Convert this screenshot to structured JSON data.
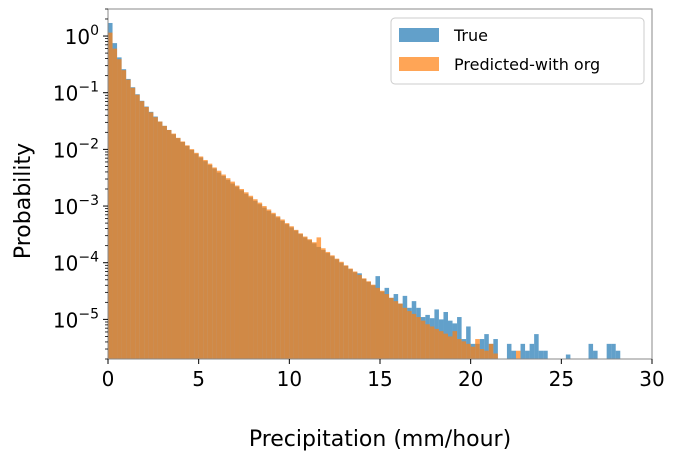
{
  "chart_data": {
    "type": "histogram",
    "title": "",
    "xlabel": "Precipitation (mm/hour)",
    "ylabel": "Probability",
    "xlim": [
      0,
      30
    ],
    "ylim": [
      2e-06,
      3
    ],
    "yscale": "log",
    "bin_width": 0.25,
    "xticks": [
      "0",
      "5",
      "10",
      "15",
      "20",
      "25",
      "30"
    ],
    "yticks": [
      {
        "base": "10",
        "exp": "0",
        "value": 1
      },
      {
        "base": "10",
        "exp": "−1",
        "value": 0.1
      },
      {
        "base": "10",
        "exp": "−2",
        "value": 0.01
      },
      {
        "base": "10",
        "exp": "−3",
        "value": 0.001
      },
      {
        "base": "10",
        "exp": "−4",
        "value": 0.0001
      },
      {
        "base": "10",
        "exp": "−5",
        "value": 1e-05
      }
    ],
    "legend_position": "top-right",
    "series": [
      {
        "name": "True",
        "color": "#1f77b4",
        "opacity": 0.7,
        "points": [
          {
            "x": 0.0,
            "y": 1.7
          },
          {
            "x": 0.25,
            "y": 0.75
          },
          {
            "x": 0.5,
            "y": 0.42
          },
          {
            "x": 0.75,
            "y": 0.26
          },
          {
            "x": 1.0,
            "y": 0.175
          },
          {
            "x": 1.25,
            "y": 0.125
          },
          {
            "x": 1.5,
            "y": 0.094
          },
          {
            "x": 1.75,
            "y": 0.072
          },
          {
            "x": 2.0,
            "y": 0.057
          },
          {
            "x": 2.25,
            "y": 0.046
          },
          {
            "x": 2.5,
            "y": 0.038
          },
          {
            "x": 2.75,
            "y": 0.031
          },
          {
            "x": 3.0,
            "y": 0.026
          },
          {
            "x": 3.25,
            "y": 0.022
          },
          {
            "x": 3.5,
            "y": 0.0185
          },
          {
            "x": 3.75,
            "y": 0.0158
          },
          {
            "x": 4.0,
            "y": 0.0135
          },
          {
            "x": 4.25,
            "y": 0.0115
          },
          {
            "x": 4.5,
            "y": 0.0098
          },
          {
            "x": 4.75,
            "y": 0.0084
          },
          {
            "x": 5.0,
            "y": 0.0072
          },
          {
            "x": 5.25,
            "y": 0.0062
          },
          {
            "x": 5.5,
            "y": 0.0053
          },
          {
            "x": 5.75,
            "y": 0.0046
          },
          {
            "x": 6.0,
            "y": 0.0039
          },
          {
            "x": 6.25,
            "y": 0.0034
          },
          {
            "x": 6.5,
            "y": 0.0029
          },
          {
            "x": 6.75,
            "y": 0.0025
          },
          {
            "x": 7.0,
            "y": 0.0022
          },
          {
            "x": 7.25,
            "y": 0.0019
          },
          {
            "x": 7.5,
            "y": 0.00165
          },
          {
            "x": 7.75,
            "y": 0.00143
          },
          {
            "x": 8.0,
            "y": 0.00124
          },
          {
            "x": 8.25,
            "y": 0.00108
          },
          {
            "x": 8.5,
            "y": 0.00094
          },
          {
            "x": 8.75,
            "y": 0.00082
          },
          {
            "x": 9.0,
            "y": 0.00072
          },
          {
            "x": 9.25,
            "y": 0.00063
          },
          {
            "x": 9.5,
            "y": 0.00055
          },
          {
            "x": 9.75,
            "y": 0.00048
          },
          {
            "x": 10.0,
            "y": 0.00042
          },
          {
            "x": 10.25,
            "y": 0.00037
          },
          {
            "x": 10.5,
            "y": 0.00032
          },
          {
            "x": 10.75,
            "y": 0.00028
          },
          {
            "x": 11.0,
            "y": 0.00025
          },
          {
            "x": 11.25,
            "y": 0.00022
          },
          {
            "x": 11.5,
            "y": 0.00019
          },
          {
            "x": 11.75,
            "y": 0.000168
          },
          {
            "x": 12.0,
            "y": 0.000148
          },
          {
            "x": 12.25,
            "y": 0.00013
          },
          {
            "x": 12.5,
            "y": 0.000115
          },
          {
            "x": 12.75,
            "y": 0.0001
          },
          {
            "x": 13.0,
            "y": 8.8e-05
          },
          {
            "x": 13.25,
            "y": 7.7e-05
          },
          {
            "x": 13.5,
            "y": 6.8e-05
          },
          {
            "x": 13.75,
            "y": 6.5e-05
          },
          {
            "x": 14.0,
            "y": 5.2e-05
          },
          {
            "x": 14.25,
            "y": 4.6e-05
          },
          {
            "x": 14.5,
            "y": 4e-05
          },
          {
            "x": 14.75,
            "y": 5.8e-05
          },
          {
            "x": 15.0,
            "y": 3.1e-05
          },
          {
            "x": 15.25,
            "y": 3.6e-05
          },
          {
            "x": 15.5,
            "y": 2.4e-05
          },
          {
            "x": 15.75,
            "y": 2.8e-05
          },
          {
            "x": 16.0,
            "y": 1.9e-05
          },
          {
            "x": 16.25,
            "y": 2.6e-05
          },
          {
            "x": 16.5,
            "y": 1.6e-05
          },
          {
            "x": 16.75,
            "y": 2.1e-05
          },
          {
            "x": 17.0,
            "y": 1.6e-05
          },
          {
            "x": 17.25,
            "y": 1.1e-05
          },
          {
            "x": 17.5,
            "y": 1.2e-05
          },
          {
            "x": 17.75,
            "y": 1.05e-05
          },
          {
            "x": 18.0,
            "y": 1.5e-05
          },
          {
            "x": 18.25,
            "y": 1e-05
          },
          {
            "x": 18.5,
            "y": 1.35e-05
          },
          {
            "x": 18.75,
            "y": 9.5e-06
          },
          {
            "x": 19.0,
            "y": 8.5e-06
          },
          {
            "x": 19.25,
            "y": 1.1e-05
          },
          {
            "x": 19.5,
            "y": 4.5e-06
          },
          {
            "x": 19.75,
            "y": 7.5e-06
          },
          {
            "x": 20.0,
            "y": 3.7e-06
          },
          {
            "x": 20.25,
            "y": 3.7e-06
          },
          {
            "x": 20.5,
            "y": 4.5e-06
          },
          {
            "x": 20.75,
            "y": 5.5e-06
          },
          {
            "x": 21.0,
            "y": 3.7e-06
          },
          {
            "x": 21.25,
            "y": 4.5e-06
          },
          {
            "x": 22.0,
            "y": 3.7e-06
          },
          {
            "x": 22.25,
            "y": 2.8e-06
          },
          {
            "x": 22.75,
            "y": 3.7e-06
          },
          {
            "x": 23.0,
            "y": 2.8e-06
          },
          {
            "x": 23.25,
            "y": 3.7e-06
          },
          {
            "x": 23.5,
            "y": 5.5e-06
          },
          {
            "x": 23.75,
            "y": 2.8e-06
          },
          {
            "x": 24.0,
            "y": 2.8e-06
          },
          {
            "x": 25.25,
            "y": 2.4e-06
          },
          {
            "x": 26.5,
            "y": 3.7e-06
          },
          {
            "x": 26.75,
            "y": 2.8e-06
          },
          {
            "x": 27.5,
            "y": 3.7e-06
          },
          {
            "x": 27.75,
            "y": 3.7e-06
          },
          {
            "x": 28.0,
            "y": 2.8e-06
          }
        ]
      },
      {
        "name": "Predicted-with org",
        "color": "#ff7f0e",
        "opacity": 0.7,
        "points": [
          {
            "x": 0.0,
            "y": 1.15
          },
          {
            "x": 0.25,
            "y": 0.6
          },
          {
            "x": 0.5,
            "y": 0.39
          },
          {
            "x": 0.75,
            "y": 0.25
          },
          {
            "x": 1.0,
            "y": 0.17
          },
          {
            "x": 1.25,
            "y": 0.122
          },
          {
            "x": 1.5,
            "y": 0.092
          },
          {
            "x": 1.75,
            "y": 0.071
          },
          {
            "x": 2.0,
            "y": 0.056
          },
          {
            "x": 2.25,
            "y": 0.045
          },
          {
            "x": 2.5,
            "y": 0.037
          },
          {
            "x": 2.75,
            "y": 0.031
          },
          {
            "x": 3.0,
            "y": 0.026
          },
          {
            "x": 3.25,
            "y": 0.022
          },
          {
            "x": 3.5,
            "y": 0.019
          },
          {
            "x": 3.75,
            "y": 0.016
          },
          {
            "x": 4.0,
            "y": 0.0138
          },
          {
            "x": 4.25,
            "y": 0.0118
          },
          {
            "x": 4.5,
            "y": 0.0101
          },
          {
            "x": 4.75,
            "y": 0.0087
          },
          {
            "x": 5.0,
            "y": 0.0075
          },
          {
            "x": 5.25,
            "y": 0.0065
          },
          {
            "x": 5.5,
            "y": 0.0056
          },
          {
            "x": 5.75,
            "y": 0.0048
          },
          {
            "x": 6.0,
            "y": 0.0042
          },
          {
            "x": 6.25,
            "y": 0.0036
          },
          {
            "x": 6.5,
            "y": 0.0031
          },
          {
            "x": 6.75,
            "y": 0.0027
          },
          {
            "x": 7.0,
            "y": 0.0023
          },
          {
            "x": 7.25,
            "y": 0.002
          },
          {
            "x": 7.5,
            "y": 0.00175
          },
          {
            "x": 7.75,
            "y": 0.00152
          },
          {
            "x": 8.0,
            "y": 0.00132
          },
          {
            "x": 8.25,
            "y": 0.00115
          },
          {
            "x": 8.5,
            "y": 0.001
          },
          {
            "x": 8.75,
            "y": 0.00087
          },
          {
            "x": 9.0,
            "y": 0.00076
          },
          {
            "x": 9.25,
            "y": 0.00066
          },
          {
            "x": 9.5,
            "y": 0.00058
          },
          {
            "x": 9.75,
            "y": 0.0005
          },
          {
            "x": 10.0,
            "y": 0.00044
          },
          {
            "x": 10.25,
            "y": 0.00038
          },
          {
            "x": 10.5,
            "y": 0.00033
          },
          {
            "x": 10.75,
            "y": 0.00029
          },
          {
            "x": 11.0,
            "y": 0.00026
          },
          {
            "x": 11.25,
            "y": 0.00023
          },
          {
            "x": 11.5,
            "y": 0.00028
          },
          {
            "x": 11.75,
            "y": 0.00018
          },
          {
            "x": 12.0,
            "y": 0.000155
          },
          {
            "x": 12.25,
            "y": 0.000135
          },
          {
            "x": 12.5,
            "y": 0.000118
          },
          {
            "x": 12.75,
            "y": 0.000104
          },
          {
            "x": 13.0,
            "y": 9e-05
          },
          {
            "x": 13.25,
            "y": 7.9e-05
          },
          {
            "x": 13.5,
            "y": 7e-05
          },
          {
            "x": 13.75,
            "y": 6.1e-05
          },
          {
            "x": 14.0,
            "y": 5.3e-05
          },
          {
            "x": 14.25,
            "y": 4.7e-05
          },
          {
            "x": 14.5,
            "y": 4.1e-05
          },
          {
            "x": 14.75,
            "y": 3.6e-05
          },
          {
            "x": 15.0,
            "y": 3.2e-05
          },
          {
            "x": 15.25,
            "y": 2.8e-05
          },
          {
            "x": 15.5,
            "y": 2.4e-05
          },
          {
            "x": 15.75,
            "y": 2.1e-05
          },
          {
            "x": 16.0,
            "y": 1.9e-05
          },
          {
            "x": 16.25,
            "y": 1.6e-05
          },
          {
            "x": 16.5,
            "y": 1.4e-05
          },
          {
            "x": 16.75,
            "y": 1.25e-05
          },
          {
            "x": 17.0,
            "y": 1.1e-05
          },
          {
            "x": 17.25,
            "y": 9.5e-06
          },
          {
            "x": 17.5,
            "y": 8.2e-06
          },
          {
            "x": 17.75,
            "y": 7.5e-06
          },
          {
            "x": 18.0,
            "y": 6.8e-06
          },
          {
            "x": 18.25,
            "y": 6.2e-06
          },
          {
            "x": 18.5,
            "y": 5.6e-06
          },
          {
            "x": 18.75,
            "y": 5e-06
          },
          {
            "x": 19.0,
            "y": 6.2e-06
          },
          {
            "x": 19.25,
            "y": 4.5e-06
          },
          {
            "x": 19.5,
            "y": 4.1e-06
          },
          {
            "x": 19.75,
            "y": 3.7e-06
          },
          {
            "x": 20.0,
            "y": 3.3e-06
          },
          {
            "x": 20.25,
            "y": 4.5e-06
          },
          {
            "x": 20.5,
            "y": 3e-06
          },
          {
            "x": 20.75,
            "y": 2.8e-06
          },
          {
            "x": 21.0,
            "y": 3.7e-06
          },
          {
            "x": 21.25,
            "y": 2.5e-06
          },
          {
            "x": 22.5,
            "y": 2.8e-06
          }
        ]
      }
    ]
  }
}
